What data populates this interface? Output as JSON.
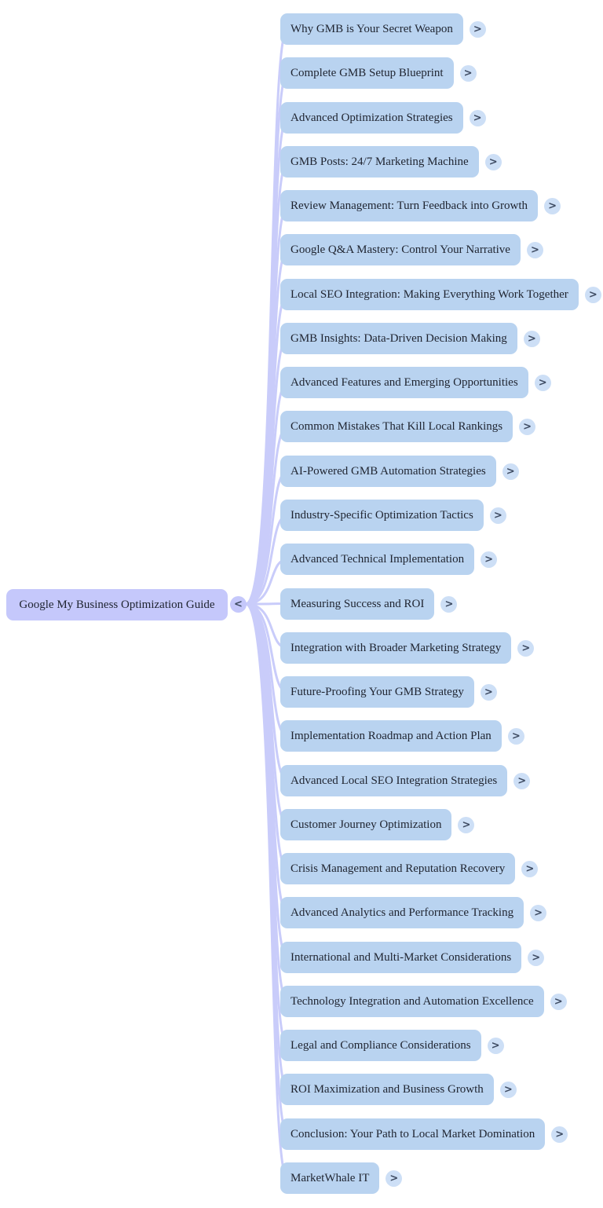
{
  "root": {
    "label": "Google My Business Optimization Guide"
  },
  "icons": {
    "collapse": "<",
    "expand": ">"
  },
  "colors": {
    "background": "#ffffff",
    "root_fill": "#c5c8fb",
    "branch_fill": "#b9d3f0",
    "branch_circle_fill": "#cddff6",
    "link": "#c9ccfa",
    "text": "#1f2430",
    "chevron": "#3f4c63"
  },
  "branches": [
    {
      "label": "Why GMB is Your Secret Weapon"
    },
    {
      "label": "Complete GMB Setup Blueprint"
    },
    {
      "label": "Advanced Optimization Strategies"
    },
    {
      "label": "GMB Posts: 24/7 Marketing Machine"
    },
    {
      "label": "Review Management: Turn Feedback into Growth"
    },
    {
      "label": "Google Q&A Mastery: Control Your Narrative"
    },
    {
      "label": "Local SEO Integration: Making Everything Work Together"
    },
    {
      "label": "GMB Insights: Data-Driven Decision Making"
    },
    {
      "label": "Advanced Features and Emerging Opportunities"
    },
    {
      "label": "Common Mistakes That Kill Local Rankings"
    },
    {
      "label": "AI-Powered GMB Automation Strategies"
    },
    {
      "label": "Industry-Specific Optimization Tactics"
    },
    {
      "label": "Advanced Technical Implementation"
    },
    {
      "label": "Measuring Success and ROI"
    },
    {
      "label": "Integration with Broader Marketing Strategy"
    },
    {
      "label": "Future-Proofing Your GMB Strategy"
    },
    {
      "label": "Implementation Roadmap and Action Plan"
    },
    {
      "label": "Advanced Local SEO Integration Strategies"
    },
    {
      "label": "Customer Journey Optimization"
    },
    {
      "label": "Crisis Management and Reputation Recovery"
    },
    {
      "label": "Advanced Analytics and Performance Tracking"
    },
    {
      "label": "International and Multi-Market Considerations"
    },
    {
      "label": "Technology Integration and Automation Excellence"
    },
    {
      "label": "Legal and Compliance Considerations"
    },
    {
      "label": "ROI Maximization and Business Growth"
    },
    {
      "label": "Conclusion: Your Path to Local Market Domination"
    },
    {
      "label": "MarketWhale IT"
    }
  ],
  "layout_meta": {
    "branch_count": "27"
  }
}
